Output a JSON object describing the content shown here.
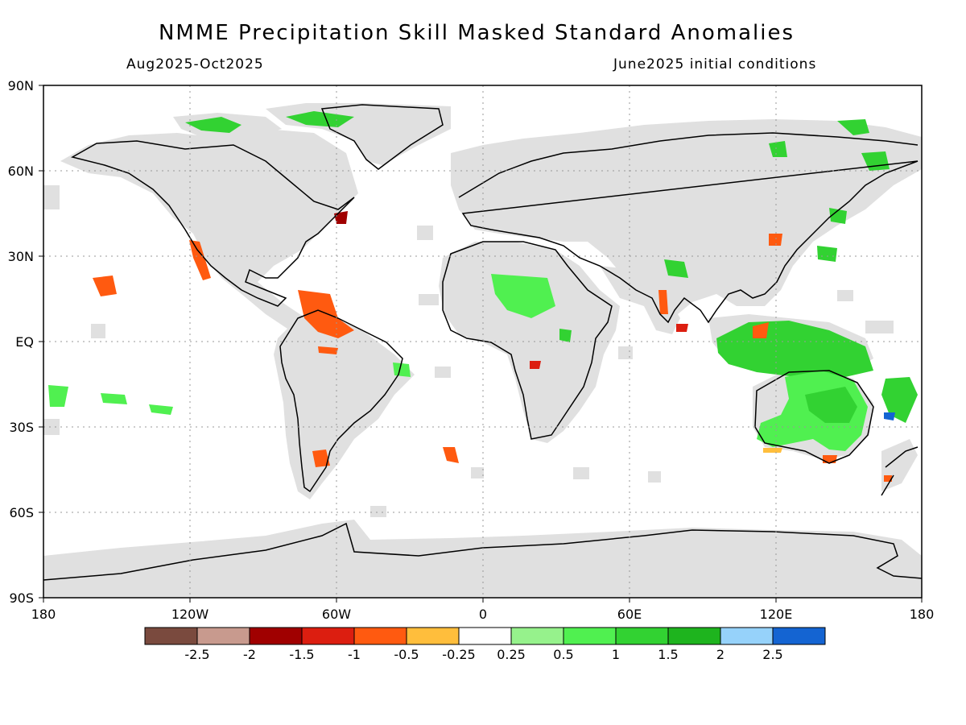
{
  "title": "NMME Precipitation Skill Masked Standard Anomalies",
  "valid_period": "Aug2025-Oct2025",
  "initial_conditions": "June2025 initial conditions",
  "map": {
    "projection": "equirectangular",
    "lon_range": [
      -180,
      180
    ],
    "lat_range": [
      -90,
      90
    ],
    "lat_labels": [
      "90N",
      "60N",
      "30N",
      "EQ",
      "30S",
      "60S",
      "90S"
    ],
    "lon_labels": [
      "180",
      "120W",
      "60W",
      "0",
      "60E",
      "120E",
      "180"
    ],
    "masked_color": "#e0e0e0",
    "coastline_color": "#000000",
    "gridline": "dotted"
  },
  "legend": {
    "colors": [
      "#7a4a3e",
      "#c89a8e",
      "#a00000",
      "#dc1e10",
      "#ff5a10",
      "#ffbe3c",
      "#ffffff",
      "#96f28c",
      "#50f050",
      "#32d232",
      "#1eb41e",
      "#96d2fa",
      "#1464d2"
    ],
    "labels": [
      "-2.5",
      "-2",
      "-1.5",
      "-1",
      "-0.5",
      "-0.25",
      "0.25",
      "0.5",
      "1",
      "1.5",
      "2",
      "2.5"
    ]
  }
}
